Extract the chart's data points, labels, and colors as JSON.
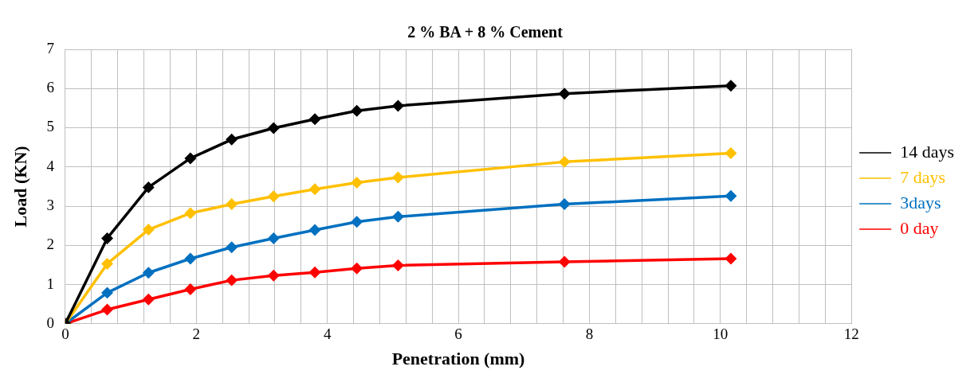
{
  "chart_data": {
    "type": "line",
    "title": "2 % BA + 8 % Cement",
    "xlabel": "Penetration (mm)",
    "ylabel": "Load (KN)",
    "x": [
      0,
      0.64,
      1.27,
      1.91,
      2.54,
      3.18,
      3.81,
      4.45,
      5.08,
      7.62,
      10.16
    ],
    "series": [
      {
        "name": "14 days",
        "color": "#000000",
        "values": [
          0,
          2.18,
          3.48,
          4.22,
          4.7,
          4.99,
          5.22,
          5.43,
          5.56,
          5.87,
          6.07
        ]
      },
      {
        "name": "7 days",
        "color": "#ffc000",
        "values": [
          0,
          1.53,
          2.4,
          2.82,
          3.05,
          3.25,
          3.43,
          3.6,
          3.73,
          4.13,
          4.35
        ]
      },
      {
        "name": "3days",
        "color": "#0070c0",
        "values": [
          0,
          0.79,
          1.3,
          1.66,
          1.95,
          2.18,
          2.39,
          2.6,
          2.73,
          3.05,
          3.26
        ]
      },
      {
        "name": "0 day",
        "color": "#ff0000",
        "values": [
          0,
          0.36,
          0.62,
          0.88,
          1.11,
          1.23,
          1.31,
          1.41,
          1.49,
          1.58,
          1.66
        ]
      }
    ],
    "xlim": [
      0,
      12
    ],
    "xticks": [
      0,
      {
        "value": 0.4,
        "label": null
      },
      {
        "value": 0.8,
        "label": null
      },
      {
        "value": 1.2,
        "label": null
      },
      {
        "value": 1.6,
        "label": null
      },
      2,
      {
        "value": 2.4,
        "label": null
      },
      {
        "value": 2.8,
        "label": null
      },
      {
        "value": 3.2,
        "label": null
      },
      {
        "value": 3.6,
        "label": null
      },
      4,
      {
        "value": 4.4,
        "label": null
      },
      {
        "value": 4.8,
        "label": null
      },
      {
        "value": 5.2,
        "label": null
      },
      {
        "value": 5.6,
        "label": null
      },
      6,
      {
        "value": 6.4,
        "label": null
      },
      {
        "value": 6.8,
        "label": null
      },
      {
        "value": 7.2,
        "label": null
      },
      {
        "value": 7.6,
        "label": null
      },
      8,
      {
        "value": 8.4,
        "label": null
      },
      {
        "value": 8.8,
        "label": null
      },
      {
        "value": 9.2,
        "label": null
      },
      {
        "value": 9.6,
        "label": null
      },
      10,
      {
        "value": 10.4,
        "label": null
      },
      {
        "value": 10.8,
        "label": null
      },
      {
        "value": 11.2,
        "label": null
      },
      {
        "value": 11.6,
        "label": null
      },
      12
    ],
    "ylim": [
      0,
      7
    ],
    "yticks": [
      0,
      1,
      2,
      3,
      4,
      5,
      6,
      7
    ],
    "grid": true,
    "legend": "right",
    "marker": "diamond",
    "line_style": "solid"
  }
}
